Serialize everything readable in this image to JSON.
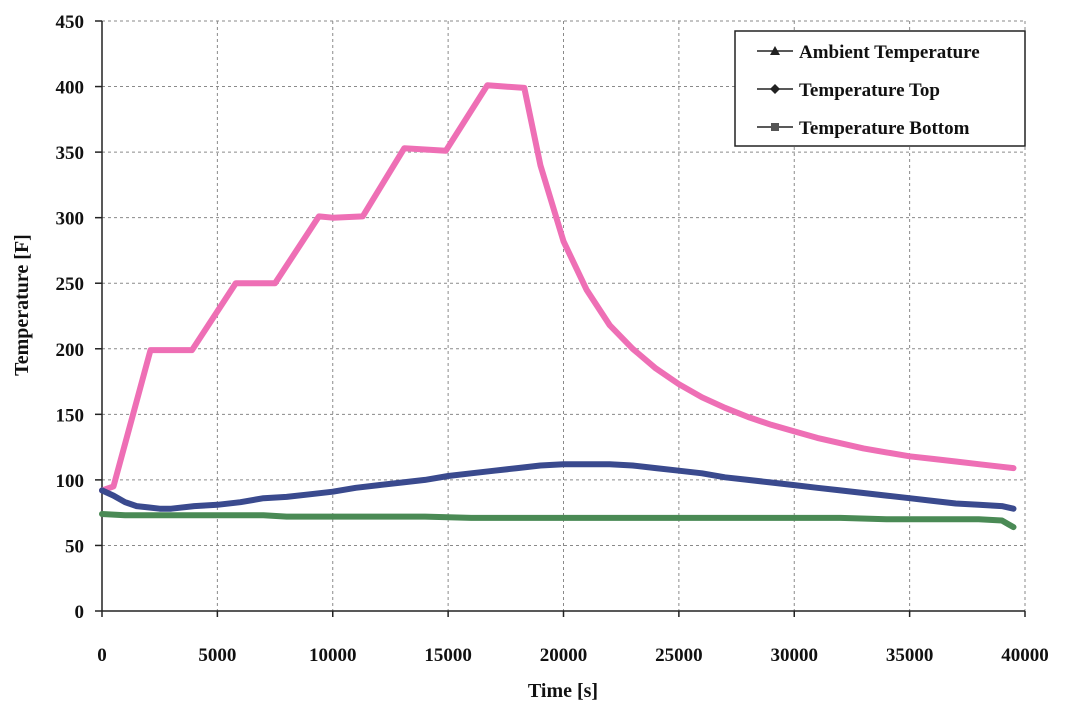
{
  "chart_data": {
    "type": "line",
    "xlabel": "Time [s]",
    "ylabel": "Temperature [F]",
    "xlim": [
      0,
      40000
    ],
    "ylim": [
      0,
      450
    ],
    "x_ticks": [
      "0",
      "5000",
      "10000",
      "15000",
      "20000",
      "25000",
      "30000",
      "35000",
      "40000"
    ],
    "y_ticks": [
      "0",
      "50",
      "100",
      "150",
      "200",
      "250",
      "300",
      "350",
      "400",
      "450"
    ],
    "grid": true,
    "legend_position": "top-right",
    "legend": [
      {
        "label": "Ambient Temperature",
        "marker": "triangle"
      },
      {
        "label": "Temperature Top",
        "marker": "diamond"
      },
      {
        "label": "Temperature Bottom",
        "marker": "square"
      }
    ],
    "series": [
      {
        "color": "#ee6fb5",
        "x": [
          0,
          500,
          2100,
          3900,
          5800,
          6700,
          7500,
          9400,
          10000,
          11300,
          13100,
          14000,
          14900,
          16700,
          17500,
          18300,
          19000,
          20000,
          21000,
          22000,
          23000,
          24000,
          25000,
          26000,
          27000,
          28000,
          29000,
          30000,
          31000,
          32000,
          33000,
          34000,
          35000,
          36000,
          37000,
          38000,
          39000,
          39500
        ],
        "y": [
          92,
          95,
          199,
          199,
          250,
          250,
          250,
          301,
          300,
          301,
          353,
          352,
          351,
          401,
          400,
          399,
          340,
          282,
          245,
          218,
          200,
          185,
          173,
          163,
          155,
          148,
          142,
          137,
          132,
          128,
          124,
          121,
          118,
          116,
          114,
          112,
          110,
          109
        ]
      },
      {
        "color": "#3a4a8e",
        "x": [
          0,
          500,
          1000,
          1500,
          2000,
          2500,
          3000,
          4000,
          5000,
          6000,
          7000,
          8000,
          9000,
          10000,
          11000,
          12000,
          13000,
          14000,
          15000,
          16000,
          17000,
          18000,
          19000,
          20000,
          21000,
          22000,
          23000,
          24000,
          25000,
          26000,
          27000,
          28000,
          29000,
          30000,
          31000,
          32000,
          33000,
          34000,
          35000,
          36000,
          37000,
          38000,
          39000,
          39500
        ],
        "y": [
          92,
          88,
          83,
          80,
          79,
          78,
          78,
          80,
          81,
          83,
          86,
          87,
          89,
          91,
          94,
          96,
          98,
          100,
          103,
          105,
          107,
          109,
          111,
          112,
          112,
          112,
          111,
          109,
          107,
          105,
          102,
          100,
          98,
          96,
          94,
          92,
          90,
          88,
          86,
          84,
          82,
          81,
          80,
          78
        ]
      },
      {
        "color": "#4a8a55",
        "x": [
          0,
          1000,
          2000,
          3000,
          4000,
          5000,
          6000,
          7000,
          8000,
          9000,
          10000,
          12000,
          14000,
          16000,
          18000,
          20000,
          22000,
          24000,
          26000,
          28000,
          30000,
          32000,
          34000,
          36000,
          38000,
          39000,
          39300,
          39500
        ],
        "y": [
          74,
          73,
          73,
          73,
          73,
          73,
          73,
          73,
          72,
          72,
          72,
          72,
          72,
          71,
          71,
          71,
          71,
          71,
          71,
          71,
          71,
          71,
          70,
          70,
          70,
          69,
          66,
          64
        ]
      }
    ]
  }
}
